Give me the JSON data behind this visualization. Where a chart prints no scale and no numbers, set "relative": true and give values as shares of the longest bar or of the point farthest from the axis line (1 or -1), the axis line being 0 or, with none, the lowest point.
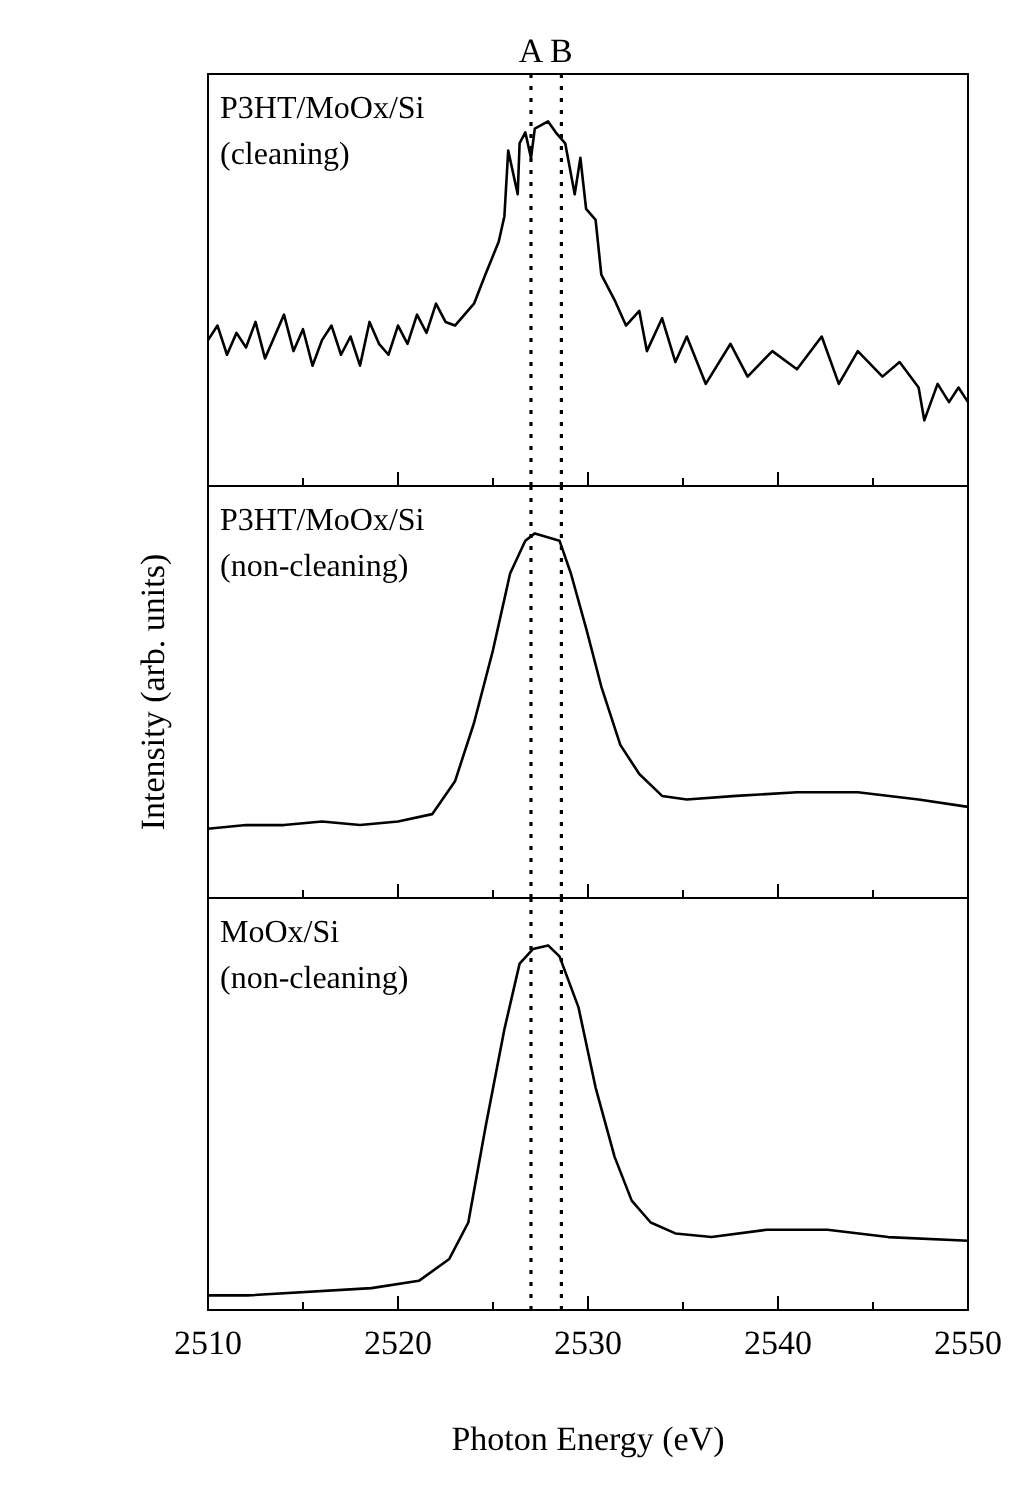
{
  "chart_data": [
    {
      "type": "line",
      "relative": true,
      "xlim": [
        2510,
        2550
      ],
      "xticks": [
        2510,
        {
          "value": 2515,
          "label": null
        },
        2520,
        {
          "value": 2525,
          "label": null
        },
        2530,
        {
          "value": 2535,
          "label": null
        },
        2540,
        {
          "value": 2545,
          "label": null
        },
        2550
      ],
      "tick_labels": false,
      "annotations": [
        "P3HT/MoOx/Si",
        "(cleaning)"
      ],
      "ref_lines": [
        {
          "axis": "x",
          "value": 2527,
          "label": "A",
          "line_style": "dotted"
        },
        {
          "axis": "x",
          "value": 2528.6,
          "label": "B",
          "line_style": "dotted"
        }
      ],
      "series": [
        {
          "color": "#000000",
          "x": [
            2510,
            2510.5,
            2511,
            2511.5,
            2512,
            2512.5,
            2513,
            2513.5,
            2514,
            2514.5,
            2515,
            2515.5,
            2516,
            2516.5,
            2517,
            2517.5,
            2518,
            2518.5,
            2519,
            2519.5,
            2520,
            2520.5,
            2521,
            2521.5,
            2522,
            2522.5,
            2523,
            2524,
            2524.6,
            2525.3,
            2525.6,
            2525.8,
            2526.3,
            2526.4,
            2526.7,
            2527,
            2527.2,
            2527.9,
            2528.3,
            2528.8,
            2529.3,
            2529.6,
            2529.9,
            2530.4,
            2530.7,
            2531.4,
            2532,
            2532.7,
            2533.1,
            2533.9,
            2534.6,
            2535.2,
            2536.2,
            2537.5,
            2538.4,
            2539.7,
            2541,
            2542.3,
            2543.2,
            2544.2,
            2545.5,
            2546.4,
            2547.4,
            2547.7,
            2548.4,
            2549,
            2549.5,
            2550
          ],
          "values": [
            0.4,
            0.44,
            0.36,
            0.42,
            0.38,
            0.45,
            0.35,
            0.41,
            0.47,
            0.37,
            0.43,
            0.33,
            0.4,
            0.44,
            0.36,
            0.41,
            0.33,
            0.45,
            0.39,
            0.36,
            0.44,
            0.39,
            0.47,
            0.42,
            0.5,
            0.45,
            0.44,
            0.5,
            0.58,
            0.67,
            0.74,
            0.92,
            0.8,
            0.94,
            0.97,
            0.9,
            0.98,
            1,
            0.97,
            0.94,
            0.8,
            0.9,
            0.76,
            0.73,
            0.58,
            0.51,
            0.44,
            0.48,
            0.37,
            0.46,
            0.34,
            0.41,
            0.28,
            0.39,
            0.3,
            0.37,
            0.32,
            0.41,
            0.28,
            0.37,
            0.3,
            0.34,
            0.27,
            0.18,
            0.28,
            0.23,
            0.27,
            0.23
          ]
        }
      ]
    },
    {
      "type": "line",
      "relative": true,
      "ylabel": "Intensity (arb. units)",
      "xlim": [
        2510,
        2550
      ],
      "xticks": [
        2510,
        {
          "value": 2515,
          "label": null
        },
        2520,
        {
          "value": 2525,
          "label": null
        },
        2530,
        {
          "value": 2535,
          "label": null
        },
        2540,
        {
          "value": 2545,
          "label": null
        },
        2550
      ],
      "tick_labels": false,
      "annotations": [
        "P3HT/MoOx/Si",
        "(non-cleaning)"
      ],
      "ref_lines": [
        {
          "axis": "x",
          "value": 2527,
          "line_style": "dotted"
        },
        {
          "axis": "x",
          "value": 2528.6,
          "line_style": "dotted"
        }
      ],
      "series": [
        {
          "color": "#000000",
          "x": [
            2510,
            2512,
            2514,
            2516,
            2518,
            2520,
            2521.8,
            2523,
            2524,
            2525,
            2525.9,
            2526.7,
            2527.2,
            2528.5,
            2529.1,
            2529.9,
            2530.7,
            2531.7,
            2532.7,
            2533.9,
            2535.2,
            2537.8,
            2541,
            2544.2,
            2547.4,
            2550
          ],
          "values": [
            0.19,
            0.2,
            0.2,
            0.21,
            0.2,
            0.21,
            0.23,
            0.32,
            0.48,
            0.68,
            0.89,
            0.98,
            1,
            0.98,
            0.89,
            0.74,
            0.58,
            0.42,
            0.34,
            0.28,
            0.27,
            0.28,
            0.29,
            0.29,
            0.27,
            0.25
          ]
        }
      ]
    },
    {
      "type": "line",
      "relative": true,
      "xlabel": "Photon Energy (eV)",
      "xlim": [
        2510,
        2550
      ],
      "xticks": [
        2510,
        {
          "value": 2515,
          "label": null
        },
        2520,
        {
          "value": 2525,
          "label": null
        },
        2530,
        {
          "value": 2535,
          "label": null
        },
        2540,
        {
          "value": 2545,
          "label": null
        },
        2550
      ],
      "tick_labels": "x",
      "annotations": [
        "MoOx/Si",
        "(non-cleaning)"
      ],
      "ref_lines": [
        {
          "axis": "x",
          "value": 2527,
          "line_style": "dotted"
        },
        {
          "axis": "x",
          "value": 2528.6,
          "line_style": "dotted"
        }
      ],
      "series": [
        {
          "color": "#000000",
          "x": [
            2510,
            2512.1,
            2518.6,
            2521.1,
            2522.7,
            2523.7,
            2524.6,
            2525.6,
            2526.4,
            2527.1,
            2527.9,
            2528.5,
            2529.5,
            2530.4,
            2531.4,
            2532.3,
            2533.3,
            2534.6,
            2536.5,
            2539.4,
            2542.6,
            2545.8,
            2550
          ],
          "values": [
            0.04,
            0.04,
            0.06,
            0.08,
            0.14,
            0.24,
            0.5,
            0.77,
            0.95,
            0.99,
            1,
            0.97,
            0.83,
            0.61,
            0.42,
            0.3,
            0.24,
            0.21,
            0.2,
            0.22,
            0.22,
            0.2,
            0.19
          ]
        }
      ]
    }
  ]
}
